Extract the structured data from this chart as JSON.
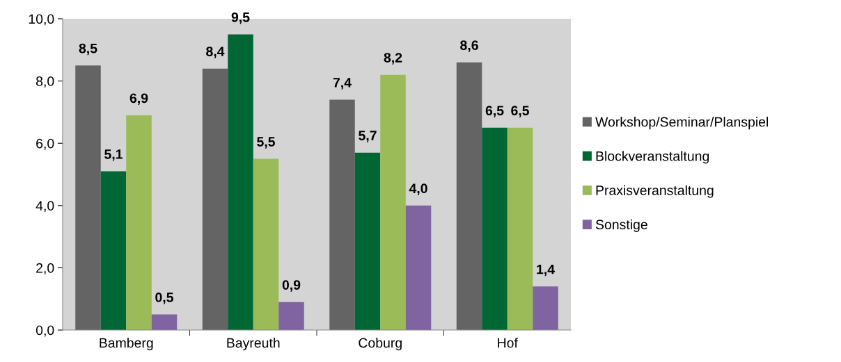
{
  "chart_data": {
    "type": "bar",
    "categories": [
      "Bamberg",
      "Bayreuth",
      "Coburg",
      "Hof"
    ],
    "series": [
      {
        "name": "Workshop/Seminar/Planspiel",
        "color": "#646464",
        "values": [
          8.5,
          8.4,
          7.4,
          8.6
        ],
        "value_labels": [
          "8,5",
          "8,4",
          "7,4",
          "8,6"
        ]
      },
      {
        "name": "Blockveranstaltung",
        "color": "#006633",
        "values": [
          5.1,
          9.5,
          5.7,
          6.5
        ],
        "value_labels": [
          "5,1",
          "9,5",
          "5,7",
          "6,5"
        ]
      },
      {
        "name": "Praxisveranstaltung",
        "color": "#9bbb59",
        "values": [
          6.9,
          5.5,
          8.2,
          6.5
        ],
        "value_labels": [
          "6,9",
          "5,5",
          "8,2",
          "6,5"
        ]
      },
      {
        "name": "Sonstige",
        "color": "#8064a2",
        "values": [
          0.5,
          0.9,
          4.0,
          1.4
        ],
        "value_labels": [
          "0,5",
          "0,9",
          "4,0",
          "1,4"
        ]
      }
    ],
    "ylim": [
      0,
      10
    ],
    "yticks": [
      {
        "value": 0,
        "label": "0,0"
      },
      {
        "value": 2,
        "label": "2,0"
      },
      {
        "value": 4,
        "label": "4,0"
      },
      {
        "value": 6,
        "label": "6,0"
      },
      {
        "value": 8,
        "label": "8,0"
      },
      {
        "value": 10,
        "label": "10,0"
      }
    ],
    "grid": false,
    "legend": "right"
  }
}
